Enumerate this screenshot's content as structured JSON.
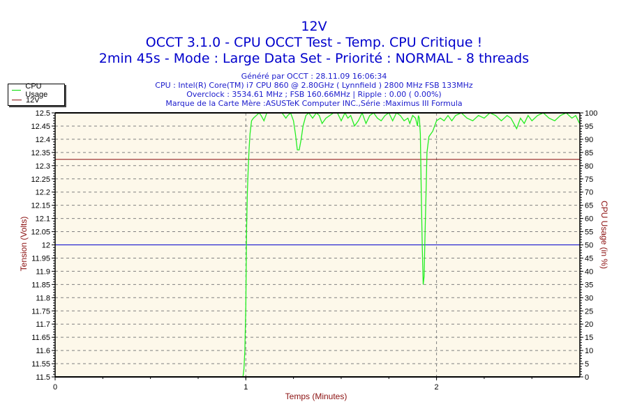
{
  "header": {
    "title": "12V",
    "subtitle": "OCCT 3.1.0 - CPU OCCT Test - Temp. CPU Critique !",
    "run_info": "2min 45s - Mode : Large Data Set - Priorité : NORMAL - 8 threads",
    "info_lines": [
      "Généré par OCCT : 28.11.09 16:06:34",
      "CPU : Intel(R) Core(TM) i7 CPU 860 @ 2.80GHz ( Lynnfield ) 2800 MHz FSB 133MHz",
      "Overclock : 3534.61 MHz ; FSB 160.66MHz | Ripple : 0.00 ( 0.00%)",
      "Marque de la Carte Mère :ASUSTeK Computer INC.,Série :Maximus III Formula"
    ]
  },
  "legend": {
    "items": [
      {
        "label": "CPU Usage",
        "color": "#00dd00"
      },
      {
        "label": "12V",
        "color": "#8b1010"
      }
    ]
  },
  "colors": {
    "plot_bg": "#fdf8ea",
    "grid": "#808080",
    "cpu_line": "#22ee22",
    "voltage_line": "#8b1010",
    "reference_line": "#0000cc",
    "axis_label": "#8b1010",
    "title": "#0000cc"
  },
  "chart_data": {
    "type": "line",
    "title": "12V",
    "xlabel": "Temps (Minutes)",
    "ylabel": "Tension (Volts)",
    "y2label": "CPU Usage (in %)",
    "xlim": [
      0,
      2.75
    ],
    "ylim": [
      11.5,
      12.5
    ],
    "y2lim": [
      0,
      100
    ],
    "x_ticks": [
      "0",
      "1",
      "2"
    ],
    "y_ticks": [
      "12.5",
      "12.45",
      "12.4",
      "12.35",
      "12.3",
      "12.25",
      "12.2",
      "12.15",
      "12.1",
      "12.05",
      "12",
      "11.95",
      "11.9",
      "11.85",
      "11.8",
      "11.75",
      "11.7",
      "11.65",
      "11.6",
      "11.55",
      "11.5"
    ],
    "y2_ticks": [
      "100",
      "95",
      "90",
      "85",
      "80",
      "75",
      "70",
      "65",
      "60",
      "55",
      "50",
      "45",
      "40",
      "35",
      "30",
      "25",
      "20",
      "15",
      "10",
      "5",
      "0"
    ],
    "grid": true,
    "legend_position": "top-left outside",
    "reference_line": {
      "y": 12.0,
      "color": "#0000cc"
    },
    "series": [
      {
        "name": "12V",
        "axis": "left",
        "color": "#8b1010",
        "x": [
          0,
          2.75
        ],
        "values": [
          12.324,
          12.324
        ]
      },
      {
        "name": "CPU Usage",
        "axis": "right",
        "color": "#22ee22",
        "x": [
          0.985,
          0.99,
          0.995,
          1.0,
          1.004,
          1.008,
          1.012,
          1.017,
          1.022,
          1.03,
          1.04,
          1.055,
          1.07,
          1.08,
          1.095,
          1.11,
          1.125,
          1.14,
          1.19,
          1.21,
          1.22,
          1.235,
          1.25,
          1.26,
          1.27,
          1.28,
          1.29,
          1.3,
          1.315,
          1.33,
          1.35,
          1.37,
          1.385,
          1.4,
          1.42,
          1.44,
          1.46,
          1.48,
          1.5,
          1.52,
          1.535,
          1.55,
          1.57,
          1.59,
          1.61,
          1.63,
          1.65,
          1.67,
          1.69,
          1.71,
          1.73,
          1.75,
          1.77,
          1.79,
          1.81,
          1.83,
          1.85,
          1.86,
          1.875,
          1.89,
          1.9,
          1.905,
          1.91,
          1.915,
          1.92,
          1.925,
          1.93,
          1.935,
          1.94,
          1.945,
          1.95,
          1.96,
          1.97,
          1.98,
          2.0,
          2.02,
          2.04,
          2.06,
          2.08,
          2.1,
          2.13,
          2.16,
          2.19,
          2.22,
          2.25,
          2.28,
          2.31,
          2.34,
          2.37,
          2.39,
          2.42,
          2.44,
          2.46,
          2.48,
          2.5,
          2.53,
          2.56,
          2.59,
          2.62,
          2.65,
          2.68,
          2.71,
          2.73,
          2.75
        ],
        "values": [
          0,
          3,
          10,
          27,
          56,
          70,
          78,
          86,
          92,
          97,
          98,
          99,
          100,
          99,
          97,
          100,
          100,
          100,
          100,
          98,
          99,
          100,
          97,
          92,
          86,
          86,
          90,
          95,
          99,
          100,
          98,
          100,
          99,
          96,
          98,
          99,
          100,
          100,
          97,
          100,
          98,
          99,
          95,
          97,
          100,
          96,
          99,
          100,
          98,
          97,
          99,
          100,
          97,
          100,
          99,
          97,
          98,
          96,
          99,
          98,
          95,
          99,
          98,
          92,
          70,
          50,
          35,
          38,
          55,
          70,
          85,
          91,
          92,
          93,
          97,
          98,
          97,
          99,
          97,
          99,
          100,
          98,
          97,
          99,
          98,
          100,
          99,
          97,
          99,
          98,
          94,
          98,
          96,
          99,
          97,
          99,
          100,
          98,
          97,
          99,
          100,
          98,
          99,
          96
        ]
      }
    ]
  }
}
